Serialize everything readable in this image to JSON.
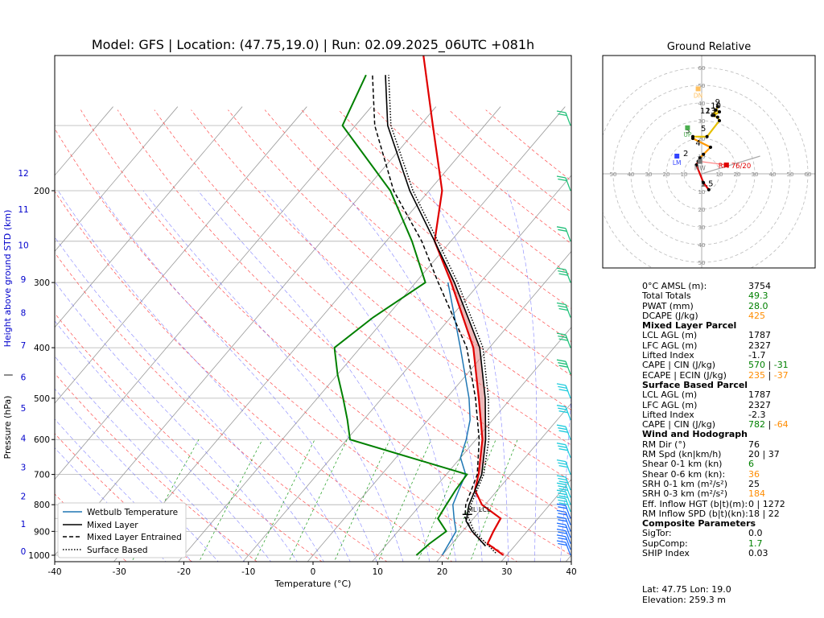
{
  "title": "Model: GFS | Location: (47.75,19.0) | Run: 02.09.2025_06UTC +081h",
  "skewt": {
    "xlabel": "Temperature (°C)",
    "ylabel_left": "Pressure (hPa)",
    "ylabel_sep": "|",
    "ylabel_right": "Height above ground STD (km)",
    "xticks": [
      "-40",
      "-30",
      "-20",
      "-10",
      "0",
      "10",
      "20",
      "30",
      "40"
    ],
    "pticks": [
      "200",
      "300",
      "400",
      "500",
      "600",
      "700",
      "800",
      "900",
      "1000"
    ],
    "hticks": [
      "0",
      "1",
      "2",
      "3",
      "4",
      "5",
      "6",
      "7",
      "8",
      "9",
      "10",
      "11",
      "12"
    ],
    "lcl_label": "ML LCL",
    "legend": [
      "Wetbulb Temperature",
      "Mixed Layer",
      "Mixed Layer Entrained",
      "Surface Based"
    ]
  },
  "chart_data": {
    "type": "line",
    "title": "Model: GFS | Location: (47.75,19.0) | Run: 02.09.2025_06UTC +081h",
    "xlabel": "Temperature (°C)",
    "ylabel": "Pressure (hPa)",
    "xlim": [
      -40,
      40
    ],
    "ylim": [
      1050,
      100
    ],
    "y_scale": "log",
    "skew": true,
    "legend_position": "lower-left",
    "temperature_c": [
      [
        1000,
        29.5
      ],
      [
        950,
        25.5
      ],
      [
        900,
        24.8
      ],
      [
        850,
        24.2
      ],
      [
        800,
        19.5
      ],
      [
        750,
        16.5
      ],
      [
        700,
        15.0
      ],
      [
        600,
        11.0
      ],
      [
        500,
        5.0
      ],
      [
        400,
        -2.5
      ],
      [
        300,
        -14.5
      ],
      [
        250,
        -22.5
      ],
      [
        200,
        -28.0
      ],
      [
        150,
        -38.0
      ],
      [
        100,
        -52.0
      ]
    ],
    "dewpoint_c": [
      [
        1000,
        16.0
      ],
      [
        950,
        16.5
      ],
      [
        900,
        17.5
      ],
      [
        850,
        14.5
      ],
      [
        800,
        14.0
      ],
      [
        750,
        13.5
      ],
      [
        700,
        13.2
      ],
      [
        600,
        -9.5
      ],
      [
        550,
        -12.5
      ],
      [
        500,
        -16.0
      ],
      [
        450,
        -20.0
      ],
      [
        400,
        -24.0
      ],
      [
        350,
        -22.0
      ],
      [
        300,
        -18.5
      ],
      [
        250,
        -26.0
      ],
      [
        200,
        -36.0
      ],
      [
        150,
        -52.0
      ],
      [
        120,
        -55.0
      ]
    ],
    "wetbulb_c": [
      [
        1000,
        20.0
      ],
      [
        900,
        19.0
      ],
      [
        850,
        17.0
      ],
      [
        800,
        15.0
      ],
      [
        750,
        14.0
      ],
      [
        700,
        13.0
      ],
      [
        650,
        10.0
      ],
      [
        600,
        8.5
      ],
      [
        550,
        6.5
      ],
      [
        500,
        3.5
      ],
      [
        400,
        -4.5
      ],
      [
        300,
        -15.0
      ]
    ],
    "parcel_mixed_layer_c": [
      [
        960,
        25.5
      ],
      [
        900,
        21.5
      ],
      [
        860,
        19.2
      ],
      [
        845,
        18.8
      ],
      [
        800,
        17.5
      ],
      [
        700,
        15.5
      ],
      [
        600,
        11.5
      ],
      [
        500,
        6.0
      ],
      [
        400,
        -1.5
      ],
      [
        300,
        -14.0
      ],
      [
        250,
        -22.5
      ],
      [
        200,
        -33.0
      ],
      [
        150,
        -45.0
      ],
      [
        120,
        -52.0
      ]
    ],
    "parcel_entrained_c": [
      [
        960,
        25.5
      ],
      [
        900,
        21.5
      ],
      [
        845,
        18.5
      ],
      [
        800,
        17.0
      ],
      [
        700,
        14.8
      ],
      [
        600,
        10.5
      ],
      [
        500,
        4.5
      ],
      [
        400,
        -3.5
      ],
      [
        300,
        -16.5
      ],
      [
        250,
        -24.5
      ],
      [
        200,
        -35.5
      ],
      [
        150,
        -47.0
      ],
      [
        120,
        -54.0
      ]
    ],
    "parcel_surface_based_c": [
      [
        990,
        28.0
      ],
      [
        900,
        21.8
      ],
      [
        845,
        19.0
      ],
      [
        800,
        17.8
      ],
      [
        700,
        15.8
      ],
      [
        600,
        12.0
      ],
      [
        500,
        6.5
      ],
      [
        400,
        -1.0
      ],
      [
        300,
        -13.5
      ],
      [
        250,
        -22.0
      ],
      [
        200,
        -32.5
      ],
      [
        150,
        -44.5
      ],
      [
        120,
        -51.5
      ]
    ],
    "lcl_hpa": 835,
    "series": [
      {
        "name": "Wetbulb Temperature",
        "color": "#1f77b4",
        "style": "solid"
      },
      {
        "name": "Mixed Layer",
        "color": "#000000",
        "style": "solid"
      },
      {
        "name": "Mixed Layer Entrained",
        "color": "#000000",
        "style": "dashed"
      },
      {
        "name": "Surface Based",
        "color": "#000000",
        "style": "dotted"
      }
    ],
    "colors": {
      "temperature": "#e00000",
      "dewpoint": "#008000",
      "wetbulb": "#1f77b4",
      "cape_fill": "#e08080"
    }
  },
  "hodograph": {
    "title": "Ground Relative",
    "rings": [
      "10",
      "20",
      "30",
      "40",
      "50",
      "60"
    ],
    "points": [
      [
        4,
        -9
      ],
      [
        1,
        -5
      ],
      [
        -3,
        5
      ],
      [
        -2,
        7
      ],
      [
        -1,
        9
      ],
      [
        1,
        11
      ],
      [
        5,
        15
      ],
      [
        -5,
        20
      ],
      [
        -5,
        21
      ],
      [
        3,
        21
      ],
      [
        10,
        30
      ],
      [
        9,
        32
      ],
      [
        6,
        33
      ],
      [
        8,
        36
      ],
      [
        10,
        35
      ],
      [
        7,
        33
      ],
      [
        9,
        38
      ]
    ],
    "labels": {
      "1.5": [
        3,
        -7
      ],
      "2": [
        -9,
        10
      ],
      "3": [
        -8,
        23
      ],
      "4": [
        -2,
        16
      ],
      "5": [
        1,
        24
      ],
      "9": [
        9,
        39
      ],
      "10": [
        8,
        37
      ],
      "12": [
        2,
        34
      ],
      "13": [
        5,
        34
      ]
    },
    "lm_label": "LM",
    "lm": [
      -14,
      10
    ],
    "dn_label": "DN",
    "dn": [
      -2,
      48
    ],
    "mw_label": "MW",
    "mw": [
      -1,
      7
    ],
    "up_label": "UP",
    "up": [
      -8,
      26
    ],
    "rm_label": "RM 76/20",
    "rm": [
      14,
      5
    ],
    "shear_arrow_end": [
      33,
      10
    ]
  },
  "params": {
    "rows_top": [
      {
        "label": "0°C AMSL (m):",
        "value": "3754",
        "color": ""
      },
      {
        "label": "Total Totals",
        "value": "49.3",
        "color": "green"
      },
      {
        "label": "PWAT (mm)",
        "value": "28.0",
        "color": "green"
      },
      {
        "label": "DCAPE (J/kg)",
        "value": "425",
        "color": "orange"
      }
    ],
    "ml_head": "Mixed Layer Parcel",
    "ml_lcl": {
      "label": "LCL AGL (m)",
      "value": "1787"
    },
    "ml_lfc": {
      "label": "LFC AGL (m)",
      "value": "2327"
    },
    "ml_li": {
      "label": "Lifted Index",
      "value": "-1.7"
    },
    "ml_cape": {
      "label": "CAPE | CIN (J/kg)",
      "cape": "570",
      "sep": "|",
      "cin": "-31"
    },
    "ml_ecape": {
      "label": "ECAPE | ECIN (J/kg)",
      "cape": "235",
      "sep": "|",
      "cin": "-37"
    },
    "sb_head": "Surface Based Parcel",
    "sb_lcl": {
      "label": "LCL AGL (m)",
      "value": "1787"
    },
    "sb_lfc": {
      "label": "LFC AGL (m)",
      "value": "2327"
    },
    "sb_li": {
      "label": "Lifted Index",
      "value": "-2.3"
    },
    "sb_cape": {
      "label": "CAPE | CIN (J/kg)",
      "cape": "782",
      "sep": "|",
      "cin": "-64"
    },
    "wind_head": "Wind and Hodograph",
    "wind_rows": [
      {
        "label": "RM Dir (°)",
        "value": "76",
        "color": ""
      },
      {
        "label": "RM Spd (kn|km/h)",
        "value": "20 | 37",
        "color": ""
      },
      {
        "label": "Shear 0-1 km (kn)",
        "value": "6",
        "color": "green"
      },
      {
        "label": "Shear 0-6 km (kn):",
        "value": "36",
        "color": "orange"
      },
      {
        "label": "SRH 0-1 km (m²/s²)",
        "value": "25",
        "color": ""
      },
      {
        "label": "SRH 0-3 km (m²/s²)",
        "value": "184",
        "color": "orange"
      },
      {
        "label": "Eff. Inflow HGT (b|t)(m):",
        "value": "0 | 1272",
        "color": ""
      },
      {
        "label": "RM Inflow SPD (b|t)(kn):",
        "value": "18 | 22",
        "color": ""
      }
    ],
    "comp_head": "Composite Parameters",
    "comp_rows": [
      {
        "label": "SigTor:",
        "value": "0.0",
        "color": ""
      },
      {
        "label": "SupComp:",
        "value": "1.7",
        "color": "green"
      },
      {
        "label": "SHIP Index",
        "value": "0.03",
        "color": ""
      }
    ]
  },
  "footer": {
    "latlon": "Lat: 47.75  Lon: 19.0",
    "elevation": "Elevation: 259.3 m"
  }
}
